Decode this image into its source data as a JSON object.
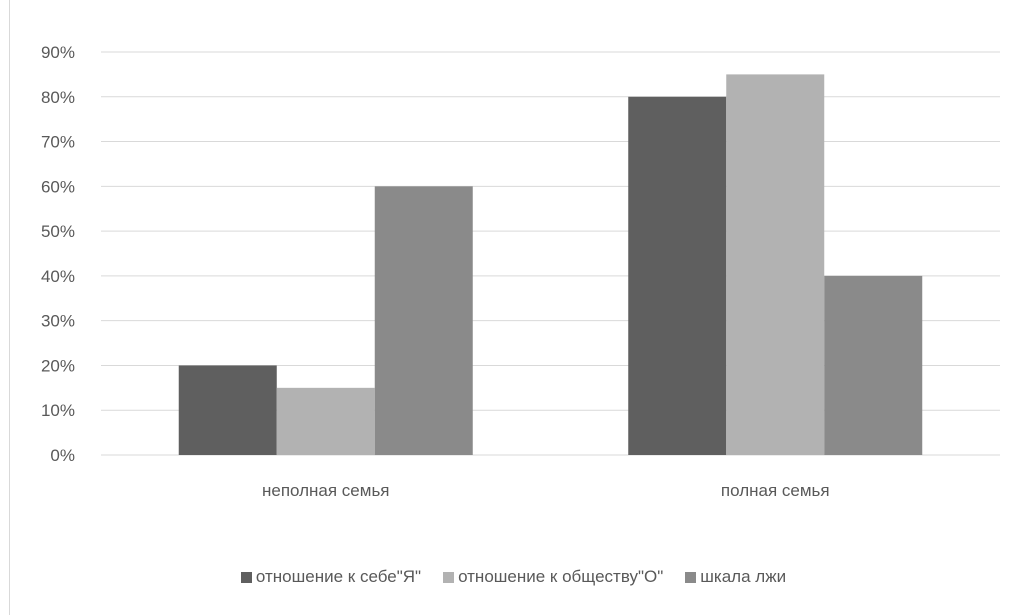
{
  "chart_data": {
    "type": "bar",
    "categories": [
      "неполная семья",
      "полная семья"
    ],
    "series": [
      {
        "name": "отношение к себе\"Я\"",
        "values": [
          20,
          80
        ],
        "color": "#5f5f5f"
      },
      {
        "name": "отношение к обществу\"О\"",
        "values": [
          15,
          85
        ],
        "color": "#b2b2b2"
      },
      {
        "name": "шкала лжи",
        "values": [
          60,
          40
        ],
        "color": "#8a8a8a"
      }
    ],
    "ylim": [
      0,
      90
    ],
    "yticks": [
      "0%",
      "10%",
      "20%",
      "30%",
      "40%",
      "50%",
      "60%",
      "70%",
      "80%",
      "90%"
    ],
    "grid": true,
    "legend": "bottom",
    "title": "",
    "xlabel": "",
    "ylabel": ""
  }
}
